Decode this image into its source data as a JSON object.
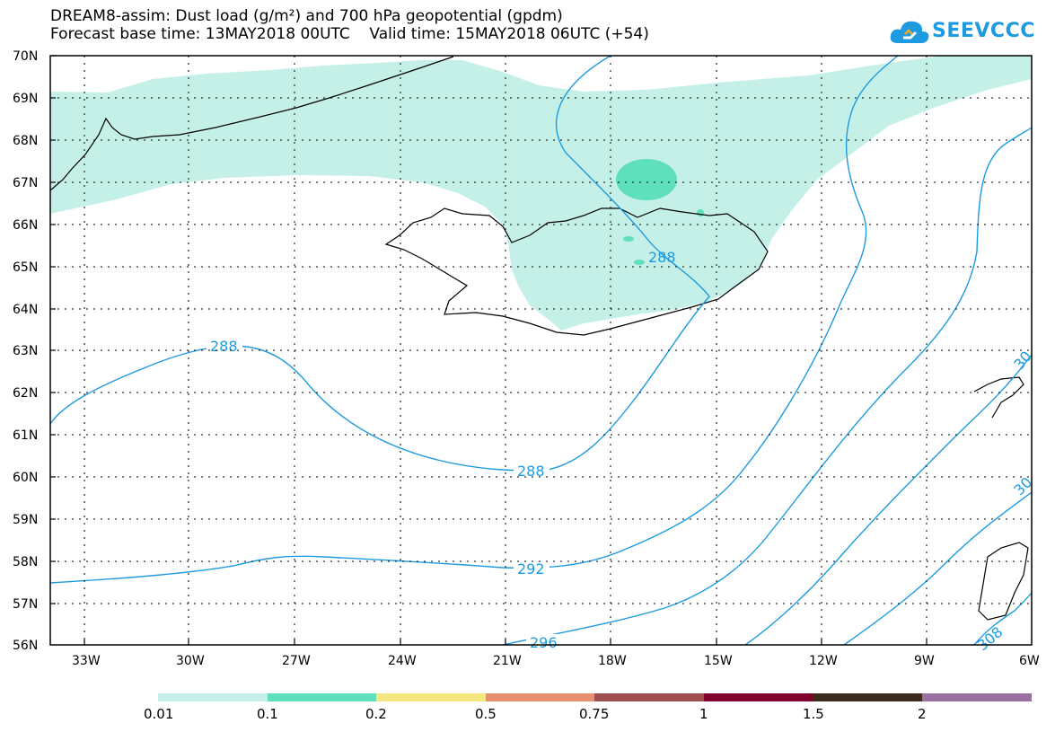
{
  "title": {
    "line1": "DREAM8-assim: Dust load (g/m²) and 700 hPa geopotential (gpdm)",
    "line2": "Forecast base time: 13MAY2018 00UTC    Valid time: 15MAY2018 06UTC (+54)"
  },
  "logo": {
    "text": "SEEVCCC",
    "icon": "cloud-icon",
    "color": "#1e9be0"
  },
  "map": {
    "lat_labels": [
      "70N",
      "69N",
      "68N",
      "67N",
      "66N",
      "65N",
      "64N",
      "63N",
      "62N",
      "61N",
      "60N",
      "59N",
      "58N",
      "57N",
      "56N"
    ],
    "lon_labels": [
      "33W",
      "30W",
      "27W",
      "24W",
      "21W",
      "18W",
      "15W",
      "12W",
      "9W",
      "6W"
    ],
    "contour_labels": [
      "288",
      "288",
      "288",
      "292",
      "296",
      "30",
      "30",
      "308"
    ],
    "contour_color": "#1e9be0",
    "fill_colors": {
      "light": "#c4f0e8",
      "medium": "#5de0bb"
    }
  },
  "colorbar": {
    "colors": [
      "#c4f0e8",
      "#5de0bb",
      "#f5e880",
      "#e89070",
      "#a05050",
      "#800030",
      "#3d2a1a",
      "#9a70a0"
    ],
    "labels": [
      "0.01",
      "0.1",
      "0.2",
      "0.5",
      "0.75",
      "1",
      "1.5",
      "2"
    ]
  }
}
